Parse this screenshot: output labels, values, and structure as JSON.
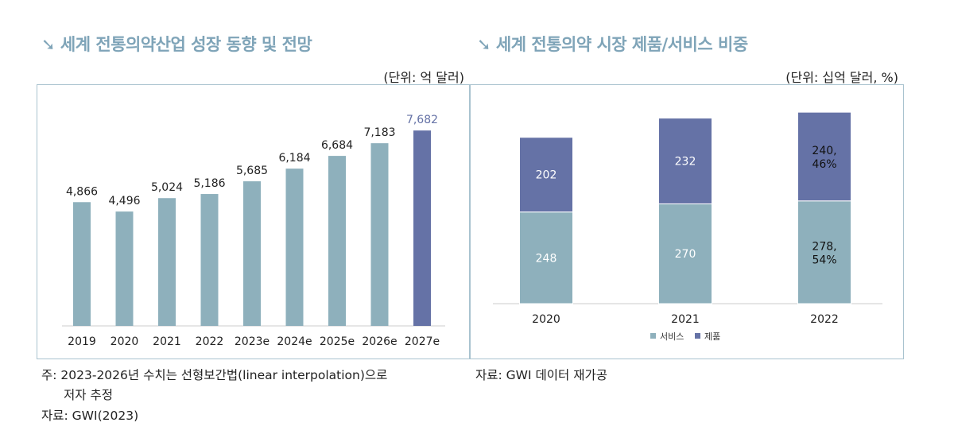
{
  "left": {
    "title": "세계 전통의약산업 성장 동향 및 전망",
    "unit": "(단위: 억 달러)"
  },
  "right": {
    "title": "세계 전통의약 시장 제품/서비스 비중",
    "unit": "(단위: 십억 달러, %)"
  },
  "notes": {
    "line1": "주: 2023-2026년 수치는 선형보간법(linear interpolation)으로",
    "line2": "저자 추정",
    "line3": "자료: GWI(2023)",
    "right_source": "자료: GWI 데이터 재가공"
  },
  "colors": {
    "teal": "#8eb0bc",
    "navy": "#6572a6",
    "title": "#7fa4b8"
  },
  "chart_data": [
    {
      "type": "bar",
      "title": "세계 전통의약산업 성장 동향 및 전망",
      "categories": [
        "2019",
        "2020",
        "2021",
        "2022",
        "2023e",
        "2024e",
        "2025e",
        "2026e",
        "2027e"
      ],
      "values": [
        4866,
        4496,
        5024,
        5186,
        5685,
        6184,
        6684,
        7183,
        7682
      ],
      "labels": [
        "4,866",
        "4,496",
        "5,024",
        "5,186",
        "5,685",
        "6,184",
        "6,684",
        "7,183",
        "7,682"
      ],
      "ylim": [
        0,
        8000
      ]
    },
    {
      "type": "bar",
      "stacked": true,
      "title": "세계 전통의약 시장 제품/서비스 비중",
      "categories": [
        "2020",
        "2021",
        "2022"
      ],
      "series": [
        {
          "name": "서비스",
          "values": [
            248,
            270,
            278
          ],
          "labels": [
            "248",
            "270",
            "278,\n54%"
          ]
        },
        {
          "name": "제품",
          "values": [
            202,
            232,
            240
          ],
          "labels": [
            "202",
            "232",
            "240,\n46%"
          ]
        }
      ],
      "legend": "bottom"
    }
  ]
}
